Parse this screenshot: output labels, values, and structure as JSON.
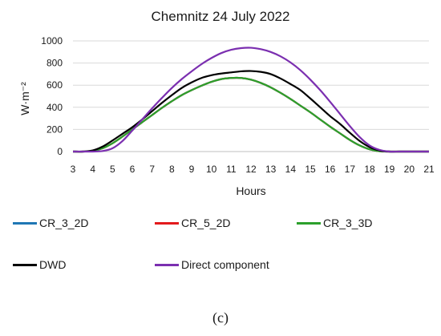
{
  "chart_data": {
    "type": "line",
    "title": "Chemnitz 24 July 2022",
    "xlabel": "Hours",
    "ylabel": "W·m⁻²",
    "xlim": [
      3,
      21
    ],
    "ylim": [
      0,
      1000
    ],
    "xticks": [
      3,
      4,
      5,
      6,
      7,
      8,
      9,
      10,
      11,
      12,
      13,
      14,
      15,
      16,
      17,
      18,
      19,
      20,
      21
    ],
    "yticks": [
      0,
      200,
      400,
      600,
      800,
      1000
    ],
    "grid": "horizontal",
    "legend_position": "bottom",
    "x": [
      3,
      3.5,
      4,
      4.5,
      5,
      5.5,
      6,
      6.5,
      7,
      7.5,
      8,
      8.5,
      9,
      9.5,
      10,
      10.5,
      11,
      11.5,
      12,
      12.5,
      13,
      13.5,
      14,
      14.5,
      15,
      15.5,
      16,
      16.5,
      17,
      17.5,
      18,
      18.5,
      19,
      19.5,
      20,
      20.5,
      21
    ],
    "series": [
      {
        "name": "CR_3_2D",
        "color": "#1f77b4",
        "values": [
          0,
          0,
          5,
          30,
          75,
          135,
          200,
          265,
          330,
          395,
          455,
          510,
          555,
          595,
          630,
          655,
          665,
          665,
          650,
          620,
          580,
          530,
          475,
          415,
          355,
          290,
          225,
          165,
          105,
          55,
          20,
          3,
          0,
          0,
          0,
          0,
          0
        ]
      },
      {
        "name": "CR_5_2D",
        "color": "#e31a1c",
        "values": [
          0,
          0,
          5,
          30,
          75,
          135,
          200,
          265,
          330,
          395,
          455,
          510,
          555,
          595,
          630,
          655,
          665,
          665,
          650,
          620,
          580,
          530,
          475,
          415,
          355,
          290,
          225,
          165,
          105,
          55,
          20,
          3,
          0,
          0,
          0,
          0,
          0
        ]
      },
      {
        "name": "CR_3_3D",
        "color": "#2ca02c",
        "values": [
          0,
          0,
          5,
          30,
          75,
          135,
          200,
          265,
          330,
          395,
          455,
          510,
          555,
          595,
          630,
          655,
          665,
          665,
          650,
          620,
          580,
          530,
          475,
          415,
          355,
          290,
          225,
          165,
          105,
          55,
          20,
          3,
          0,
          0,
          0,
          0,
          0
        ]
      },
      {
        "name": "DWD",
        "color": "#000000",
        "values": [
          0,
          0,
          10,
          45,
          100,
          160,
          220,
          290,
          365,
          440,
          510,
          575,
          625,
          665,
          690,
          705,
          715,
          725,
          728,
          720,
          700,
          660,
          610,
          555,
          480,
          400,
          320,
          250,
          170,
          95,
          40,
          10,
          0,
          0,
          0,
          0,
          0
        ]
      },
      {
        "name": "Direct component",
        "color": "#7b2fb0",
        "values": [
          0,
          0,
          0,
          5,
          30,
          95,
          190,
          290,
          390,
          485,
          575,
          655,
          725,
          790,
          845,
          890,
          920,
          935,
          938,
          925,
          900,
          860,
          805,
          735,
          650,
          555,
          450,
          340,
          230,
          130,
          55,
          15,
          0,
          0,
          0,
          0,
          0
        ]
      }
    ]
  },
  "legend": {
    "items": [
      {
        "label": "CR_3_2D",
        "color": "#1f77b4"
      },
      {
        "label": "CR_5_2D",
        "color": "#e31a1c"
      },
      {
        "label": "CR_3_3D",
        "color": "#2ca02c"
      },
      {
        "label": "DWD",
        "color": "#000000"
      },
      {
        "label": "Direct component",
        "color": "#7b2fb0"
      }
    ]
  },
  "caption": "(c)"
}
